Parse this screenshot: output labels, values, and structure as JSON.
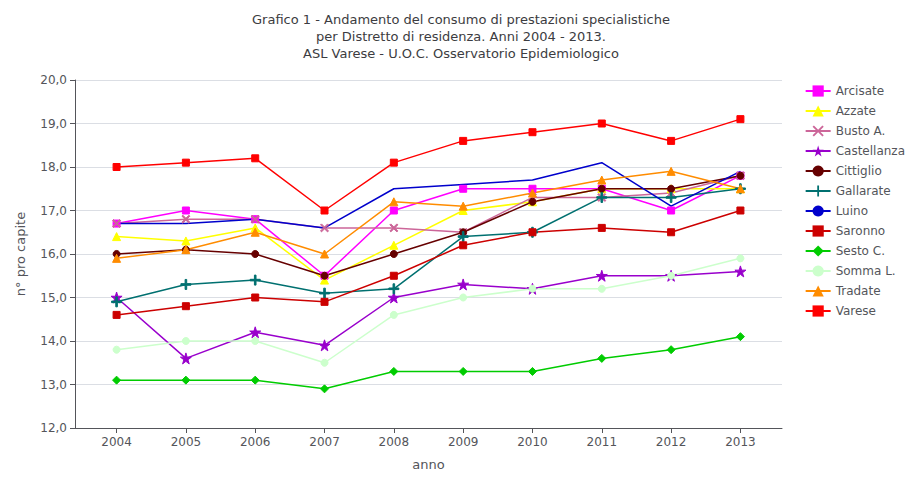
{
  "chart_data": {
    "type": "line",
    "title": "Grafico 1 - Andamento del consumo di prestazioni specialistiche\nper Distretto di residenza. Anni 2004 - 2013.\nASL Varese - U.O.C. Osservatorio Epidemiologico",
    "xlabel": "anno",
    "ylabel": "n° pro capite",
    "x": [
      2004,
      2005,
      2006,
      2007,
      2008,
      2009,
      2010,
      2011,
      2012,
      2013
    ],
    "xlim": [
      2003.4,
      2013.6
    ],
    "xticks": [
      2004,
      2005,
      2006,
      2007,
      2008,
      2009,
      2010,
      2011,
      2012,
      2013
    ],
    "ylim": [
      12.0,
      20.0
    ],
    "yticks": [
      {
        "value": 12,
        "label": "12,0"
      },
      {
        "value": 13,
        "label": "13,0"
      },
      {
        "value": 14,
        "label": "14,0"
      },
      {
        "value": 15,
        "label": "15,0"
      },
      {
        "value": 16,
        "label": "16,0"
      },
      {
        "value": 17,
        "label": "17,0"
      },
      {
        "value": 18,
        "label": "18,0"
      },
      {
        "value": 19,
        "label": "19,0"
      },
      {
        "value": 20,
        "label": "20,0"
      }
    ],
    "grid": "y",
    "legend": "right",
    "series": [
      {
        "name": "Arcisate",
        "color": "#FF00FF",
        "marker": "square",
        "values": [
          16.7,
          17.0,
          16.8,
          15.5,
          17.0,
          17.5,
          17.5,
          17.5,
          17.0,
          17.8
        ]
      },
      {
        "name": "Azzate",
        "color": "#FFFF00",
        "marker": "triangle",
        "values": [
          16.4,
          16.3,
          16.6,
          15.4,
          16.2,
          17.0,
          17.2,
          17.5,
          17.5,
          17.5
        ]
      },
      {
        "name": "Busto A.",
        "color": "#CC6699",
        "marker": "x",
        "values": [
          16.7,
          16.8,
          16.8,
          16.6,
          16.6,
          16.5,
          17.3,
          17.3,
          17.4,
          17.8
        ]
      },
      {
        "name": "Castellanza",
        "color": "#9900CC",
        "marker": "star",
        "values": [
          15.0,
          13.6,
          14.2,
          13.9,
          15.0,
          15.3,
          15.2,
          15.5,
          15.5,
          15.6
        ]
      },
      {
        "name": "Cittiglio",
        "color": "#660000",
        "marker": "circle",
        "values": [
          16.0,
          16.1,
          16.0,
          15.5,
          16.0,
          16.5,
          17.2,
          17.5,
          17.5,
          17.8
        ]
      },
      {
        "name": "Gallarate",
        "color": "#007070",
        "marker": "plus",
        "values": [
          14.9,
          15.3,
          15.4,
          15.1,
          15.2,
          16.4,
          16.5,
          17.3,
          17.3,
          17.5
        ]
      },
      {
        "name": "Luino",
        "color": "#0000CC",
        "marker": "none",
        "values": [
          16.7,
          16.7,
          16.8,
          16.6,
          17.5,
          17.6,
          17.7,
          18.1,
          17.1,
          17.9
        ]
      },
      {
        "name": "Saronno",
        "color": "#CC0000",
        "marker": "square",
        "values": [
          14.6,
          14.8,
          15.0,
          14.9,
          15.5,
          16.2,
          16.5,
          16.6,
          16.5,
          17.0
        ]
      },
      {
        "name": "Sesto C.",
        "color": "#00CC00",
        "marker": "diamond",
        "values": [
          13.1,
          13.1,
          13.1,
          12.9,
          13.3,
          13.3,
          13.3,
          13.6,
          13.8,
          14.1
        ]
      },
      {
        "name": "Somma L.",
        "color": "#CCFFCC",
        "marker": "circle",
        "values": [
          13.8,
          14.0,
          14.0,
          13.5,
          14.6,
          15.0,
          15.2,
          15.2,
          15.5,
          15.9
        ]
      },
      {
        "name": "Tradate",
        "color": "#FF8C00",
        "marker": "triangle",
        "values": [
          15.9,
          16.1,
          16.5,
          16.0,
          17.2,
          17.1,
          17.4,
          17.7,
          17.9,
          17.5
        ]
      },
      {
        "name": "Varese",
        "color": "#FF0000",
        "marker": "square",
        "values": [
          18.0,
          18.1,
          18.2,
          17.0,
          18.1,
          18.6,
          18.8,
          19.0,
          18.6,
          19.1
        ]
      }
    ]
  }
}
